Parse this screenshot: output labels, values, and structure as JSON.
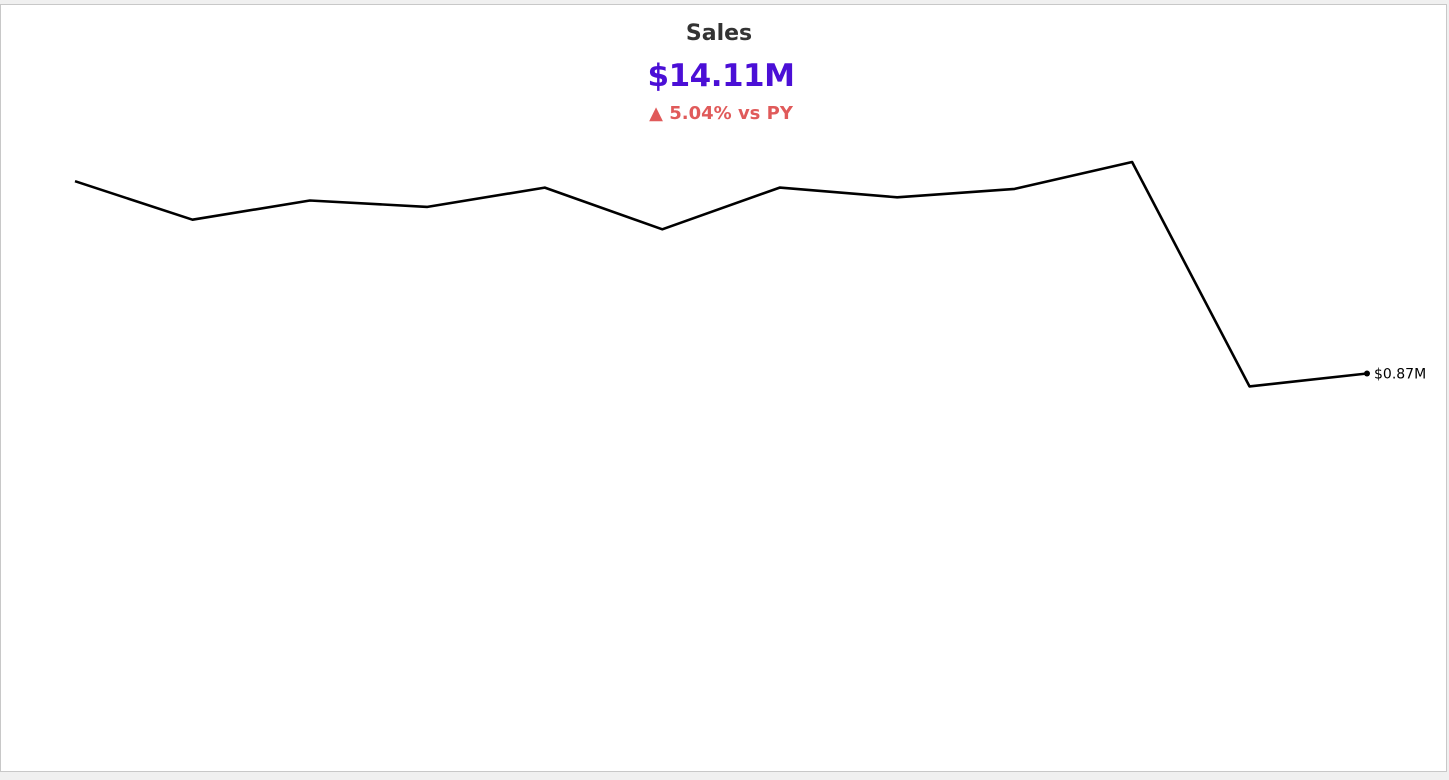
{
  "kpi": {
    "title": "Sales",
    "value": "$14.11M",
    "change_arrow": "▲",
    "change_text": "5.04% vs PY",
    "value_color": "#4b0fd6",
    "change_color": "#e05a5a"
  },
  "chart_data": {
    "type": "line",
    "title": "Sales",
    "xlabel": "",
    "ylabel": "",
    "grid": false,
    "x": [
      1,
      2,
      3,
      4,
      5,
      6,
      7,
      8,
      9,
      10,
      11,
      12
    ],
    "values": [
      1.17,
      1.11,
      1.14,
      1.13,
      1.16,
      1.095,
      1.16,
      1.145,
      1.158,
      1.2,
      0.85,
      0.87
    ],
    "ylim": [
      0,
      1.24
    ],
    "end_label": "$0.87M",
    "line_color": "#000000"
  }
}
